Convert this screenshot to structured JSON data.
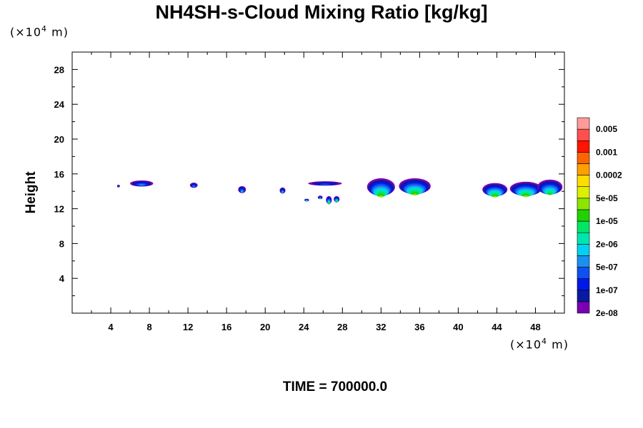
{
  "chart_data": {
    "type": "heatmap",
    "title": "NH4SH-s-Cloud Mixing Ratio [kg/kg]",
    "ylabel": "Height",
    "xlabel": "",
    "x_unit": {
      "mantissa": "(×10",
      "exponent": "4",
      "label": "m)"
    },
    "y_unit": {
      "mantissa": "(×10",
      "exponent": "4",
      "label": "m)"
    },
    "xlim": [
      0,
      51
    ],
    "ylim": [
      0,
      30
    ],
    "x_ticks": [
      "4",
      "8",
      "12",
      "16",
      "20",
      "24",
      "28",
      "32",
      "36",
      "40",
      "44",
      "48"
    ],
    "x_tick_values": [
      4,
      8,
      12,
      16,
      20,
      24,
      28,
      32,
      36,
      40,
      44,
      48
    ],
    "y_ticks": [
      "4",
      "8",
      "12",
      "16",
      "20",
      "24",
      "28"
    ],
    "y_tick_values": [
      4,
      8,
      12,
      16,
      20,
      24,
      28
    ],
    "colorbar": {
      "labels": [
        "0.005",
        "0.001",
        "0.0002",
        "5e-05",
        "1e-05",
        "2e-06",
        "5e-07",
        "1e-07",
        "2e-08"
      ],
      "colors": [
        "#7a00b4",
        "#0a1aa0",
        "#0018e6",
        "#1050f0",
        "#1a90f0",
        "#00d2f0",
        "#00e6b0",
        "#00e664",
        "#22d200",
        "#8ce600",
        "#dcf000",
        "#ffdc00",
        "#ffa000",
        "#ff6400",
        "#ff1400",
        "#ff5050",
        "#ff9a9a"
      ]
    },
    "cloud_features": [
      {
        "x": 4.8,
        "y": 14.6,
        "w": 0.3,
        "h": 0.3,
        "max_level": 3
      },
      {
        "x": 7.2,
        "y": 14.9,
        "w": 2.4,
        "h": 0.7,
        "max_level": 4
      },
      {
        "x": 12.6,
        "y": 14.7,
        "w": 0.8,
        "h": 0.6,
        "max_level": 4
      },
      {
        "x": 17.6,
        "y": 14.2,
        "w": 0.8,
        "h": 0.8,
        "max_level": 5
      },
      {
        "x": 21.8,
        "y": 14.1,
        "w": 0.6,
        "h": 0.7,
        "max_level": 5
      },
      {
        "x": 26.2,
        "y": 14.9,
        "w": 3.5,
        "h": 0.5,
        "max_level": 3
      },
      {
        "x": 24.3,
        "y": 13.0,
        "w": 0.5,
        "h": 0.3,
        "max_level": 7
      },
      {
        "x": 25.7,
        "y": 13.3,
        "w": 0.5,
        "h": 0.4,
        "max_level": 5
      },
      {
        "x": 26.6,
        "y": 13.0,
        "w": 0.6,
        "h": 0.9,
        "max_level": 8
      },
      {
        "x": 27.4,
        "y": 13.1,
        "w": 0.6,
        "h": 0.7,
        "max_level": 8
      },
      {
        "x": 32.0,
        "y": 14.5,
        "w": 2.9,
        "h": 2.0,
        "max_level": 9
      },
      {
        "x": 35.5,
        "y": 14.6,
        "w": 3.3,
        "h": 1.8,
        "max_level": 9
      },
      {
        "x": 43.8,
        "y": 14.2,
        "w": 2.6,
        "h": 1.5,
        "max_level": 9
      },
      {
        "x": 47.0,
        "y": 14.3,
        "w": 3.3,
        "h": 1.6,
        "max_level": 9
      },
      {
        "x": 49.5,
        "y": 14.5,
        "w": 2.6,
        "h": 1.7,
        "max_level": 8
      }
    ]
  },
  "time_label": "TIME = 700000.0"
}
